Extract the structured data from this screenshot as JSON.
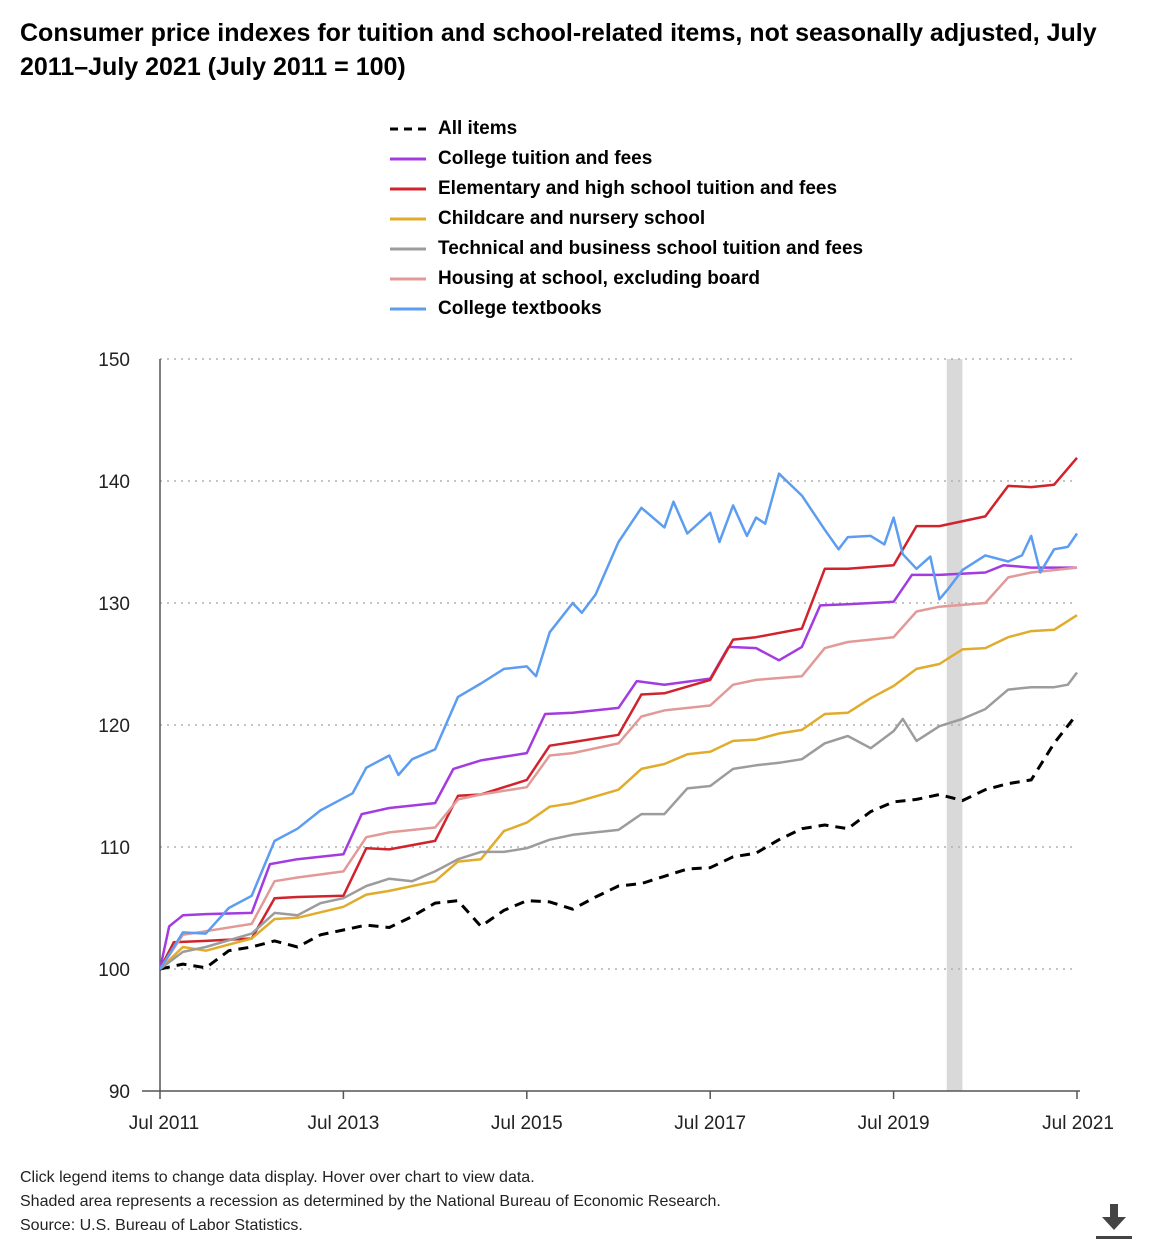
{
  "title": "Consumer price indexes for tuition and school-related items, not seasonally adjusted, July 2011–July 2021 (July 2011 = 100)",
  "notes": {
    "line1": "Click legend items to change data display. Hover over chart to view data.",
    "line2": "Shaded area represents a recession as determined by the National Bureau of Economic Research.",
    "line3": "Source: U.S. Bureau of Labor Statistics."
  },
  "icons": {
    "download": "download-icon"
  },
  "chart_data": {
    "type": "line",
    "title": "Consumer price indexes for tuition and school-related items, not seasonally adjusted, July 2011–July 2021 (July 2011 = 100)",
    "xlabel": "",
    "ylabel": "",
    "ylim": [
      90,
      150
    ],
    "yticks": [
      90,
      100,
      110,
      120,
      130,
      140,
      150
    ],
    "xlim": [
      2011.5,
      2021.5
    ],
    "xticks": [
      {
        "value": 2011.5,
        "label": "Jul 2011"
      },
      {
        "value": 2013.5,
        "label": "Jul 2013"
      },
      {
        "value": 2015.5,
        "label": "Jul 2015"
      },
      {
        "value": 2017.5,
        "label": "Jul 2017"
      },
      {
        "value": 2019.5,
        "label": "Jul 2019"
      },
      {
        "value": 2021.5,
        "label": "Jul 2021"
      }
    ],
    "grid": true,
    "legend_position": "top",
    "recession": {
      "start": 2020.08,
      "end": 2020.25
    },
    "series": [
      {
        "name": "All items",
        "color": "#000000",
        "dash": true,
        "points": [
          [
            2011.5,
            100
          ],
          [
            2011.75,
            100.4
          ],
          [
            2012.0,
            100.1
          ],
          [
            2012.25,
            101.5
          ],
          [
            2012.5,
            101.8
          ],
          [
            2012.75,
            102.3
          ],
          [
            2013.0,
            101.8
          ],
          [
            2013.25,
            102.8
          ],
          [
            2013.5,
            103.2
          ],
          [
            2013.75,
            103.6
          ],
          [
            2014.0,
            103.4
          ],
          [
            2014.25,
            104.3
          ],
          [
            2014.5,
            105.4
          ],
          [
            2014.75,
            105.6
          ],
          [
            2015.0,
            103.5
          ],
          [
            2015.25,
            104.8
          ],
          [
            2015.5,
            105.6
          ],
          [
            2015.75,
            105.5
          ],
          [
            2016.0,
            104.9
          ],
          [
            2016.25,
            105.9
          ],
          [
            2016.5,
            106.8
          ],
          [
            2016.75,
            107.0
          ],
          [
            2017.0,
            107.6
          ],
          [
            2017.25,
            108.2
          ],
          [
            2017.5,
            108.3
          ],
          [
            2017.75,
            109.2
          ],
          [
            2018.0,
            109.5
          ],
          [
            2018.25,
            110.6
          ],
          [
            2018.5,
            111.5
          ],
          [
            2018.75,
            111.8
          ],
          [
            2019.0,
            111.5
          ],
          [
            2019.25,
            112.9
          ],
          [
            2019.5,
            113.7
          ],
          [
            2019.75,
            113.9
          ],
          [
            2020.0,
            114.3
          ],
          [
            2020.25,
            113.8
          ],
          [
            2020.5,
            114.7
          ],
          [
            2020.75,
            115.2
          ],
          [
            2021.0,
            115.5
          ],
          [
            2021.25,
            118.5
          ],
          [
            2021.5,
            120.9
          ]
        ]
      },
      {
        "name": "College tuition and fees",
        "color": "#a23ce0",
        "dash": false,
        "points": [
          [
            2011.5,
            100
          ],
          [
            2011.6,
            103.5
          ],
          [
            2011.75,
            104.4
          ],
          [
            2012.0,
            104.5
          ],
          [
            2012.5,
            104.6
          ],
          [
            2012.7,
            108.6
          ],
          [
            2013.0,
            109.0
          ],
          [
            2013.5,
            109.4
          ],
          [
            2013.7,
            112.7
          ],
          [
            2014.0,
            113.2
          ],
          [
            2014.5,
            113.6
          ],
          [
            2014.7,
            116.4
          ],
          [
            2015.0,
            117.1
          ],
          [
            2015.5,
            117.7
          ],
          [
            2015.7,
            120.9
          ],
          [
            2016.0,
            121.0
          ],
          [
            2016.5,
            121.4
          ],
          [
            2016.7,
            123.6
          ],
          [
            2017.0,
            123.3
          ],
          [
            2017.5,
            123.8
          ],
          [
            2017.7,
            126.4
          ],
          [
            2018.0,
            126.3
          ],
          [
            2018.25,
            125.3
          ],
          [
            2018.5,
            126.4
          ],
          [
            2018.7,
            129.8
          ],
          [
            2019.0,
            129.9
          ],
          [
            2019.5,
            130.1
          ],
          [
            2019.7,
            132.3
          ],
          [
            2020.0,
            132.3
          ],
          [
            2020.5,
            132.5
          ],
          [
            2020.7,
            133.1
          ],
          [
            2021.0,
            132.9
          ],
          [
            2021.5,
            132.9
          ]
        ]
      },
      {
        "name": "Elementary and high school tuition and fees",
        "color": "#d0232c",
        "dash": false,
        "points": [
          [
            2011.5,
            100
          ],
          [
            2011.65,
            102.2
          ],
          [
            2012.0,
            102.3
          ],
          [
            2012.5,
            102.5
          ],
          [
            2012.75,
            105.8
          ],
          [
            2013.0,
            105.9
          ],
          [
            2013.5,
            106.0
          ],
          [
            2013.75,
            109.9
          ],
          [
            2014.0,
            109.8
          ],
          [
            2014.5,
            110.5
          ],
          [
            2014.75,
            114.2
          ],
          [
            2015.0,
            114.3
          ],
          [
            2015.5,
            115.5
          ],
          [
            2015.75,
            118.3
          ],
          [
            2016.0,
            118.6
          ],
          [
            2016.5,
            119.2
          ],
          [
            2016.75,
            122.5
          ],
          [
            2017.0,
            122.6
          ],
          [
            2017.5,
            123.7
          ],
          [
            2017.75,
            127.0
          ],
          [
            2018.0,
            127.2
          ],
          [
            2018.5,
            127.9
          ],
          [
            2018.75,
            132.8
          ],
          [
            2019.0,
            132.8
          ],
          [
            2019.5,
            133.1
          ],
          [
            2019.75,
            136.3
          ],
          [
            2020.0,
            136.3
          ],
          [
            2020.5,
            137.1
          ],
          [
            2020.75,
            139.6
          ],
          [
            2021.0,
            139.5
          ],
          [
            2021.25,
            139.7
          ],
          [
            2021.5,
            141.9
          ]
        ]
      },
      {
        "name": "Childcare and nursery school",
        "color": "#e1ac2b",
        "dash": false,
        "points": [
          [
            2011.5,
            100
          ],
          [
            2011.75,
            101.8
          ],
          [
            2012.0,
            101.5
          ],
          [
            2012.5,
            102.5
          ],
          [
            2012.75,
            104.1
          ],
          [
            2013.0,
            104.2
          ],
          [
            2013.5,
            105.1
          ],
          [
            2013.75,
            106.1
          ],
          [
            2014.0,
            106.4
          ],
          [
            2014.5,
            107.2
          ],
          [
            2014.75,
            108.8
          ],
          [
            2015.0,
            109.0
          ],
          [
            2015.25,
            111.3
          ],
          [
            2015.5,
            112.0
          ],
          [
            2015.75,
            113.3
          ],
          [
            2016.0,
            113.6
          ],
          [
            2016.5,
            114.7
          ],
          [
            2016.75,
            116.4
          ],
          [
            2017.0,
            116.8
          ],
          [
            2017.25,
            117.6
          ],
          [
            2017.5,
            117.8
          ],
          [
            2017.75,
            118.7
          ],
          [
            2018.0,
            118.8
          ],
          [
            2018.25,
            119.3
          ],
          [
            2018.5,
            119.6
          ],
          [
            2018.75,
            120.9
          ],
          [
            2019.0,
            121.0
          ],
          [
            2019.25,
            122.2
          ],
          [
            2019.5,
            123.2
          ],
          [
            2019.75,
            124.6
          ],
          [
            2020.0,
            125.0
          ],
          [
            2020.25,
            126.2
          ],
          [
            2020.5,
            126.3
          ],
          [
            2020.75,
            127.2
          ],
          [
            2021.0,
            127.7
          ],
          [
            2021.25,
            127.8
          ],
          [
            2021.5,
            129.0
          ]
        ]
      },
      {
        "name": "Technical and business school tuition and fees",
        "color": "#9c9c9c",
        "dash": false,
        "points": [
          [
            2011.5,
            100
          ],
          [
            2011.75,
            101.4
          ],
          [
            2012.0,
            101.8
          ],
          [
            2012.5,
            102.9
          ],
          [
            2012.75,
            104.6
          ],
          [
            2013.0,
            104.4
          ],
          [
            2013.25,
            105.4
          ],
          [
            2013.5,
            105.8
          ],
          [
            2013.75,
            106.8
          ],
          [
            2014.0,
            107.4
          ],
          [
            2014.25,
            107.2
          ],
          [
            2014.5,
            108.0
          ],
          [
            2014.75,
            109.0
          ],
          [
            2015.0,
            109.6
          ],
          [
            2015.25,
            109.6
          ],
          [
            2015.5,
            109.9
          ],
          [
            2015.75,
            110.6
          ],
          [
            2016.0,
            111.0
          ],
          [
            2016.5,
            111.4
          ],
          [
            2016.75,
            112.7
          ],
          [
            2017.0,
            112.7
          ],
          [
            2017.25,
            114.8
          ],
          [
            2017.5,
            115.0
          ],
          [
            2017.75,
            116.4
          ],
          [
            2018.0,
            116.7
          ],
          [
            2018.25,
            116.9
          ],
          [
            2018.5,
            117.2
          ],
          [
            2018.75,
            118.5
          ],
          [
            2019.0,
            119.1
          ],
          [
            2019.25,
            118.1
          ],
          [
            2019.5,
            119.5
          ],
          [
            2019.6,
            120.5
          ],
          [
            2019.75,
            118.7
          ],
          [
            2020.0,
            119.9
          ],
          [
            2020.25,
            120.5
          ],
          [
            2020.5,
            121.3
          ],
          [
            2020.75,
            122.9
          ],
          [
            2021.0,
            123.1
          ],
          [
            2021.25,
            123.1
          ],
          [
            2021.4,
            123.3
          ],
          [
            2021.5,
            124.3
          ]
        ]
      },
      {
        "name": "Housing at school, excluding board",
        "color": "#e29a98",
        "dash": false,
        "points": [
          [
            2011.5,
            100
          ],
          [
            2011.75,
            102.8
          ],
          [
            2012.0,
            103.1
          ],
          [
            2012.5,
            103.7
          ],
          [
            2012.75,
            107.2
          ],
          [
            2013.0,
            107.5
          ],
          [
            2013.5,
            108.0
          ],
          [
            2013.75,
            110.8
          ],
          [
            2014.0,
            111.2
          ],
          [
            2014.5,
            111.6
          ],
          [
            2014.75,
            113.9
          ],
          [
            2015.0,
            114.3
          ],
          [
            2015.5,
            114.9
          ],
          [
            2015.75,
            117.5
          ],
          [
            2016.0,
            117.7
          ],
          [
            2016.5,
            118.5
          ],
          [
            2016.75,
            120.7
          ],
          [
            2017.0,
            121.2
          ],
          [
            2017.5,
            121.6
          ],
          [
            2017.75,
            123.3
          ],
          [
            2018.0,
            123.7
          ],
          [
            2018.5,
            124.0
          ],
          [
            2018.75,
            126.3
          ],
          [
            2019.0,
            126.8
          ],
          [
            2019.5,
            127.2
          ],
          [
            2019.75,
            129.3
          ],
          [
            2020.0,
            129.7
          ],
          [
            2020.5,
            130.0
          ],
          [
            2020.75,
            132.1
          ],
          [
            2021.0,
            132.5
          ],
          [
            2021.5,
            132.9
          ]
        ]
      },
      {
        "name": "College textbooks",
        "color": "#5c9df2",
        "dash": false,
        "points": [
          [
            2011.5,
            100
          ],
          [
            2011.75,
            103.0
          ],
          [
            2012.0,
            102.9
          ],
          [
            2012.25,
            105.0
          ],
          [
            2012.5,
            106.0
          ],
          [
            2012.75,
            110.5
          ],
          [
            2013.0,
            111.5
          ],
          [
            2013.25,
            113.0
          ],
          [
            2013.5,
            114.0
          ],
          [
            2013.6,
            114.4
          ],
          [
            2013.75,
            116.5
          ],
          [
            2014.0,
            117.5
          ],
          [
            2014.1,
            115.9
          ],
          [
            2014.25,
            117.2
          ],
          [
            2014.5,
            118.0
          ],
          [
            2014.75,
            122.3
          ],
          [
            2015.0,
            123.4
          ],
          [
            2015.25,
            124.6
          ],
          [
            2015.5,
            124.8
          ],
          [
            2015.6,
            124.0
          ],
          [
            2015.75,
            127.6
          ],
          [
            2016.0,
            130.0
          ],
          [
            2016.1,
            129.2
          ],
          [
            2016.25,
            130.7
          ],
          [
            2016.5,
            135.0
          ],
          [
            2016.75,
            137.8
          ],
          [
            2017.0,
            136.2
          ],
          [
            2017.1,
            138.3
          ],
          [
            2017.25,
            135.7
          ],
          [
            2017.5,
            137.4
          ],
          [
            2017.6,
            135.0
          ],
          [
            2017.75,
            138.0
          ],
          [
            2017.9,
            135.5
          ],
          [
            2018.0,
            137.0
          ],
          [
            2018.1,
            136.5
          ],
          [
            2018.25,
            140.6
          ],
          [
            2018.5,
            138.8
          ],
          [
            2018.75,
            136.0
          ],
          [
            2018.9,
            134.4
          ],
          [
            2019.0,
            135.4
          ],
          [
            2019.25,
            135.5
          ],
          [
            2019.4,
            134.8
          ],
          [
            2019.5,
            137.0
          ],
          [
            2019.6,
            134.0
          ],
          [
            2019.75,
            132.8
          ],
          [
            2019.9,
            133.8
          ],
          [
            2020.0,
            130.3
          ],
          [
            2020.1,
            131.2
          ],
          [
            2020.25,
            132.7
          ],
          [
            2020.5,
            133.9
          ],
          [
            2020.75,
            133.4
          ],
          [
            2020.9,
            133.9
          ],
          [
            2021.0,
            135.5
          ],
          [
            2021.1,
            132.5
          ],
          [
            2021.25,
            134.4
          ],
          [
            2021.4,
            134.6
          ],
          [
            2021.5,
            135.7
          ]
        ]
      }
    ]
  }
}
